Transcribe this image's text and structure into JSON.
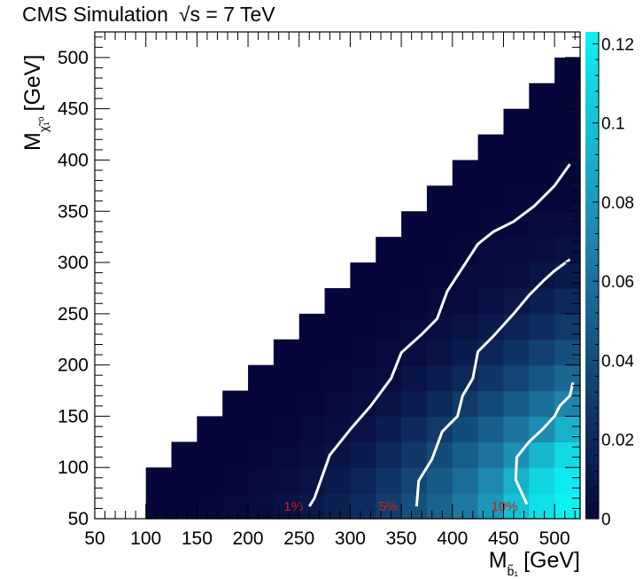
{
  "chart_data": {
    "type": "heatmap",
    "title": "CMS Simulation",
    "title_energy": "√s = 7 TeV",
    "xlabel": {
      "main": "M",
      "sub": "b̃₁",
      "unit": "[GeV]"
    },
    "ylabel": {
      "main": "M",
      "sub": "χ̃₁⁰",
      "unit": "[GeV]"
    },
    "xlim": [
      50,
      525
    ],
    "ylim": [
      50,
      525
    ],
    "x_ticks": [
      50,
      100,
      150,
      200,
      250,
      300,
      350,
      400,
      450,
      500
    ],
    "y_ticks": [
      50,
      100,
      150,
      200,
      250,
      300,
      350,
      400,
      450,
      500
    ],
    "z_range": [
      0,
      0.123
    ],
    "z_ticks": [
      0,
      0.02,
      0.04,
      0.06,
      0.08,
      0.1,
      0.12
    ],
    "z_tick_labels": [
      "0",
      "0.02",
      "0.04",
      "0.06",
      "0.08",
      "0.1",
      "0.12"
    ],
    "colors": {
      "low": "#06063a",
      "mid": "#1f7fa8",
      "high": "#0ef0f4",
      "contour": "#ffffff",
      "contour_label": "#cc1f1f"
    },
    "cell_size": 25,
    "x_bins": [
      100,
      125,
      150,
      175,
      200,
      225,
      250,
      275,
      300,
      325,
      350,
      375,
      400,
      425,
      450,
      475,
      500
    ],
    "y_bins": [
      50,
      75,
      100,
      125,
      150,
      175,
      200,
      225,
      250,
      275,
      300,
      325,
      350,
      375,
      400,
      425,
      450,
      475
    ],
    "cells": [
      [
        0,
        0,
        0,
        0,
        0,
        0,
        0,
        0,
        0,
        0,
        0,
        0,
        0,
        0,
        0,
        0,
        0,
        0
      ],
      [
        0,
        0,
        0,
        0,
        0,
        0,
        0,
        0,
        0,
        0,
        0,
        0,
        0,
        0,
        0,
        0,
        0,
        0
      ],
      [
        0.001,
        0,
        0,
        0,
        0,
        0,
        0,
        0,
        0,
        0,
        0,
        0,
        0,
        0,
        0,
        0,
        0,
        0
      ],
      [
        0.002,
        0.001,
        0,
        0,
        0,
        0,
        0,
        0,
        0,
        0,
        0,
        0,
        0,
        0,
        0,
        0,
        0,
        0
      ],
      [
        0.004,
        0.002,
        0.001,
        0,
        0,
        0,
        0,
        0,
        0,
        0,
        0,
        0,
        0,
        0,
        0,
        0,
        0,
        0
      ],
      [
        0.006,
        0.004,
        0.002,
        0.001,
        0,
        0,
        0,
        0,
        0,
        0,
        0,
        0,
        0,
        0,
        0,
        0,
        0,
        0
      ],
      [
        0.01,
        0.007,
        0.004,
        0.002,
        0.001,
        0,
        0,
        0,
        0,
        0,
        0,
        0,
        0,
        0,
        0,
        0,
        0,
        0
      ],
      [
        0.015,
        0.011,
        0.007,
        0.004,
        0.002,
        0.001,
        0,
        0,
        0,
        0,
        0,
        0,
        0,
        0,
        0,
        0,
        0,
        0
      ],
      [
        0.022,
        0.017,
        0.012,
        0.007,
        0.004,
        0.002,
        0.001,
        0,
        0,
        0,
        0,
        0,
        0,
        0,
        0,
        0,
        0,
        0
      ],
      [
        0.031,
        0.026,
        0.019,
        0.013,
        0.008,
        0.004,
        0.002,
        0.001,
        0,
        0,
        0,
        0,
        0,
        0,
        0,
        0,
        0,
        0
      ],
      [
        0.042,
        0.036,
        0.028,
        0.02,
        0.013,
        0.008,
        0.004,
        0.002,
        0.001,
        0,
        0,
        0,
        0,
        0,
        0,
        0,
        0,
        0
      ],
      [
        0.052,
        0.047,
        0.039,
        0.029,
        0.02,
        0.013,
        0.007,
        0.004,
        0.002,
        0.001,
        0,
        0,
        0,
        0,
        0,
        0,
        0,
        0
      ],
      [
        0.064,
        0.058,
        0.049,
        0.039,
        0.029,
        0.019,
        0.012,
        0.007,
        0.003,
        0.002,
        0.001,
        0,
        0,
        0,
        0,
        0,
        0,
        0
      ],
      [
        0.08,
        0.072,
        0.061,
        0.05,
        0.038,
        0.027,
        0.018,
        0.011,
        0.006,
        0.003,
        0.002,
        0.001,
        0,
        0,
        0,
        0,
        0,
        0
      ],
      [
        0.1,
        0.092,
        0.076,
        0.062,
        0.048,
        0.036,
        0.025,
        0.016,
        0.01,
        0.005,
        0.003,
        0.001,
        0.001,
        0,
        0,
        0,
        0,
        0
      ],
      [
        0.115,
        0.11,
        0.095,
        0.074,
        0.058,
        0.045,
        0.033,
        0.022,
        0.014,
        0.008,
        0.004,
        0.002,
        0.001,
        0,
        0,
        0,
        0,
        0
      ],
      [
        0.123,
        0.12,
        0.112,
        0.092,
        0.07,
        0.054,
        0.041,
        0.029,
        0.019,
        0.011,
        0.006,
        0.003,
        0.001,
        0.001,
        0,
        0,
        0,
        0
      ]
    ],
    "contours": [
      {
        "label": "1%",
        "label_at": [
          235,
          62
        ],
        "points": [
          [
            260,
            62
          ],
          [
            265,
            70
          ],
          [
            280,
            112
          ],
          [
            300,
            137
          ],
          [
            320,
            160
          ],
          [
            340,
            187
          ],
          [
            350,
            212
          ],
          [
            370,
            230
          ],
          [
            385,
            245
          ],
          [
            395,
            272
          ],
          [
            410,
            295
          ],
          [
            425,
            318
          ],
          [
            440,
            330
          ],
          [
            460,
            340
          ],
          [
            480,
            355
          ],
          [
            500,
            375
          ],
          [
            515,
            396
          ]
        ]
      },
      {
        "label": "5%",
        "label_at": [
          328,
          62
        ],
        "points": [
          [
            365,
            62
          ],
          [
            367,
            87
          ],
          [
            380,
            108
          ],
          [
            390,
            135
          ],
          [
            405,
            150
          ],
          [
            410,
            170
          ],
          [
            420,
            187
          ],
          [
            425,
            213
          ],
          [
            440,
            228
          ],
          [
            460,
            250
          ],
          [
            475,
            268
          ],
          [
            490,
            283
          ],
          [
            500,
            292
          ],
          [
            515,
            303
          ]
        ]
      },
      {
        "label": "10%",
        "label_at": [
          438,
          62
        ],
        "points": [
          [
            473,
            64
          ],
          [
            468,
            75
          ],
          [
            462,
            88
          ],
          [
            463,
            110
          ],
          [
            475,
            125
          ],
          [
            488,
            137
          ],
          [
            500,
            150
          ],
          [
            505,
            160
          ],
          [
            515,
            170
          ],
          [
            518,
            183
          ]
        ]
      }
    ]
  }
}
